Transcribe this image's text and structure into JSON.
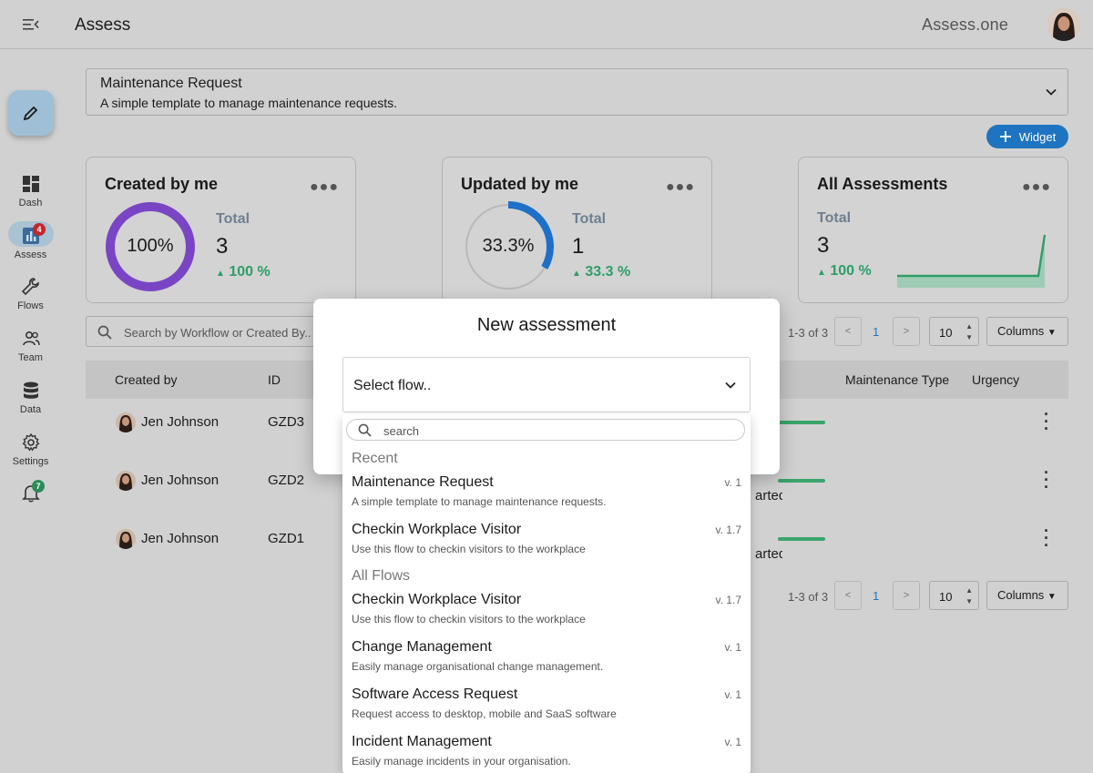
{
  "header": {
    "title": "Assess",
    "brand": "Assess.one"
  },
  "sidebar": {
    "items": [
      {
        "label": "Dash"
      },
      {
        "label": "Assess",
        "badge": "4"
      },
      {
        "label": "Flows"
      },
      {
        "label": "Team"
      },
      {
        "label": "Data"
      },
      {
        "label": "Settings"
      }
    ],
    "notifications_badge": "7"
  },
  "template": {
    "name": "Maintenance Request",
    "description": "A simple template to manage maintenance requests."
  },
  "widget_button": "Widget",
  "cards": [
    {
      "title": "Created by me",
      "ring_label": "100%",
      "ring_percent": 100,
      "total_label": "Total",
      "total": "3",
      "delta": "100 %"
    },
    {
      "title": "Updated by me",
      "ring_label": "33.3%",
      "ring_percent": 33.3,
      "total_label": "Total",
      "total": "1",
      "delta": "33.3 %"
    },
    {
      "title": "All Assessments",
      "total_label": "Total",
      "total": "3",
      "delta": "100 %"
    }
  ],
  "search": {
    "placeholder": "Search by Workflow or Created By.."
  },
  "pagination": {
    "count": "1-3 of 3",
    "page": "1",
    "page_size": "10",
    "columns_label": "Columns",
    "prev": "<",
    "next": ">"
  },
  "table": {
    "headers": [
      "Created by",
      "ID",
      "Maintenance Type",
      "Urgency"
    ],
    "rows": [
      {
        "name": "Jen Johnson",
        "id": "GZD3",
        "status": ""
      },
      {
        "name": "Jen Johnson",
        "id": "GZD2",
        "status": "arted"
      },
      {
        "name": "Jen Johnson",
        "id": "GZD1",
        "status": "arted"
      }
    ]
  },
  "modal": {
    "title": "New assessment",
    "select_placeholder": "Select flow.."
  },
  "dropdown": {
    "search_placeholder": "search",
    "recent_label": "Recent",
    "recent": [
      {
        "title": "Maintenance Request",
        "description": "A simple template to manage maintenance requests.",
        "version": "v. 1"
      },
      {
        "title": "Checkin Workplace Visitor",
        "description": "Use this flow to checkin visitors to the workplace",
        "version": "v. 1.7"
      }
    ],
    "all_label": "All Flows",
    "all": [
      {
        "title": "Checkin Workplace Visitor",
        "description": "Use this flow to checkin visitors to the workplace",
        "version": "v. 1.7"
      },
      {
        "title": "Change Management",
        "description": "Easily manage organisational change management.",
        "version": "v. 1"
      },
      {
        "title": "Software Access Request",
        "description": "Request access to desktop, mobile and SaaS software",
        "version": "v. 1"
      },
      {
        "title": "Incident Management",
        "description": "Easily manage incidents in your organisation.",
        "version": "v. 1"
      }
    ]
  }
}
